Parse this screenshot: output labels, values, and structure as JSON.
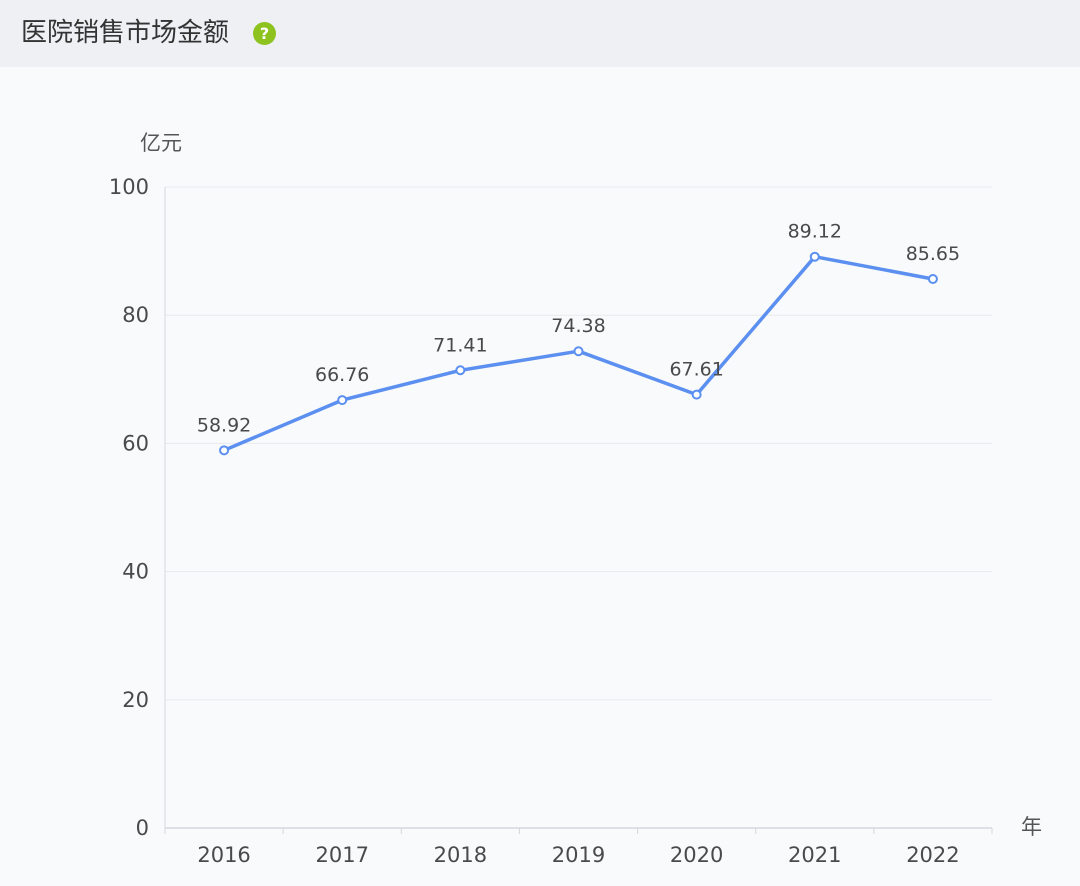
{
  "header": {
    "title": "医院销售市场金额",
    "help_icon": "question-circle-icon"
  },
  "colors": {
    "line": "#5b8ff0",
    "help_icon": "#8dc21f",
    "grid": "#e8eaee",
    "axis": "#d5d8de"
  },
  "chart_data": {
    "type": "line",
    "categories": [
      "2016",
      "2017",
      "2018",
      "2019",
      "2020",
      "2021",
      "2022"
    ],
    "series": [
      {
        "values": [
          58.92,
          66.76,
          71.41,
          74.38,
          67.61,
          89.12,
          85.65
        ]
      }
    ],
    "data_labels": [
      "58.92",
      "66.76",
      "71.41",
      "74.38",
      "67.61",
      "89.12",
      "85.65"
    ],
    "ylabel": "亿元",
    "xlabel": "年",
    "ylim": [
      0,
      100
    ],
    "yticks": [
      0,
      20,
      40,
      60,
      80,
      100
    ],
    "grid": true,
    "legend": "none"
  }
}
